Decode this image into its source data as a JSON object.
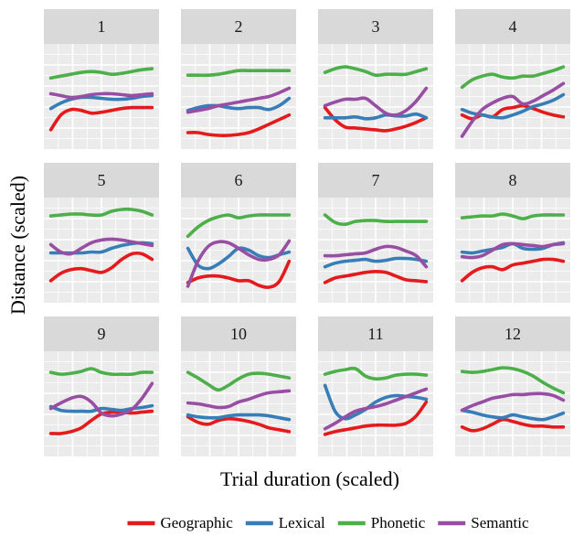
{
  "chart_data": {
    "type": "line",
    "layout": "small-multiples 3x4",
    "xlabel": "Trial duration (scaled)",
    "ylabel": "Distance (scaled)",
    "xlim": [
      0,
      1
    ],
    "ylim": [
      0,
      1
    ],
    "grid": true,
    "tick_labels": "none",
    "legend_position": "bottom",
    "x": [
      0,
      0.1,
      0.2,
      0.3,
      0.4,
      0.5,
      0.6,
      0.7,
      0.8,
      0.9,
      1.0
    ],
    "legend": [
      {
        "name": "Geographic",
        "color": "#e41a1c"
      },
      {
        "name": "Lexical",
        "color": "#377eb8"
      },
      {
        "name": "Phonetic",
        "color": "#4daf4a"
      },
      {
        "name": "Semantic",
        "color": "#984ea3"
      }
    ],
    "panels": [
      {
        "label": "1",
        "series": [
          {
            "name": "Geographic",
            "values": [
              0.14,
              0.3,
              0.36,
              0.35,
              0.32,
              0.33,
              0.35,
              0.37,
              0.38,
              0.38,
              0.38
            ]
          },
          {
            "name": "Lexical",
            "values": [
              0.37,
              0.43,
              0.47,
              0.49,
              0.49,
              0.48,
              0.47,
              0.47,
              0.48,
              0.5,
              0.51
            ]
          },
          {
            "name": "Phonetic",
            "values": [
              0.7,
              0.72,
              0.74,
              0.76,
              0.77,
              0.76,
              0.74,
              0.75,
              0.77,
              0.79,
              0.8
            ]
          },
          {
            "name": "Semantic",
            "values": [
              0.53,
              0.51,
              0.49,
              0.5,
              0.52,
              0.53,
              0.53,
              0.52,
              0.51,
              0.52,
              0.53
            ]
          }
        ]
      },
      {
        "label": "2",
        "series": [
          {
            "name": "Geographic",
            "values": [
              0.11,
              0.11,
              0.09,
              0.08,
              0.08,
              0.09,
              0.11,
              0.15,
              0.2,
              0.25,
              0.3
            ]
          },
          {
            "name": "Lexical",
            "values": [
              0.35,
              0.38,
              0.4,
              0.4,
              0.38,
              0.37,
              0.38,
              0.38,
              0.36,
              0.4,
              0.48
            ]
          },
          {
            "name": "Phonetic",
            "values": [
              0.73,
              0.73,
              0.73,
              0.74,
              0.76,
              0.78,
              0.78,
              0.78,
              0.78,
              0.78,
              0.78
            ]
          },
          {
            "name": "Semantic",
            "values": [
              0.33,
              0.35,
              0.37,
              0.4,
              0.42,
              0.44,
              0.46,
              0.48,
              0.5,
              0.54,
              0.59
            ]
          }
        ]
      },
      {
        "label": "3",
        "series": [
          {
            "name": "Geographic",
            "values": [
              0.38,
              0.25,
              0.17,
              0.16,
              0.15,
              0.14,
              0.13,
              0.15,
              0.18,
              0.22,
              0.27
            ]
          },
          {
            "name": "Lexical",
            "values": [
              0.27,
              0.27,
              0.27,
              0.28,
              0.26,
              0.27,
              0.3,
              0.29,
              0.29,
              0.31,
              0.27
            ]
          },
          {
            "name": "Phonetic",
            "values": [
              0.76,
              0.8,
              0.82,
              0.8,
              0.77,
              0.73,
              0.74,
              0.74,
              0.74,
              0.77,
              0.8
            ]
          },
          {
            "name": "Semantic",
            "values": [
              0.4,
              0.44,
              0.47,
              0.47,
              0.48,
              0.4,
              0.32,
              0.3,
              0.35,
              0.45,
              0.59
            ]
          }
        ]
      },
      {
        "label": "4",
        "series": [
          {
            "name": "Geographic",
            "values": [
              0.3,
              0.26,
              0.3,
              0.28,
              0.36,
              0.38,
              0.4,
              0.37,
              0.33,
              0.3,
              0.28
            ]
          },
          {
            "name": "Lexical",
            "values": [
              0.36,
              0.32,
              0.3,
              0.28,
              0.27,
              0.3,
              0.34,
              0.39,
              0.42,
              0.46,
              0.52
            ]
          },
          {
            "name": "Phonetic",
            "values": [
              0.6,
              0.68,
              0.72,
              0.74,
              0.71,
              0.7,
              0.72,
              0.72,
              0.75,
              0.78,
              0.82
            ]
          },
          {
            "name": "Semantic",
            "values": [
              0.07,
              0.23,
              0.36,
              0.43,
              0.48,
              0.5,
              0.42,
              0.45,
              0.51,
              0.57,
              0.64
            ]
          }
        ]
      },
      {
        "label": "5",
        "series": [
          {
            "name": "Geographic",
            "values": [
              0.17,
              0.25,
              0.29,
              0.3,
              0.28,
              0.26,
              0.31,
              0.4,
              0.46,
              0.46,
              0.4
            ]
          },
          {
            "name": "Lexical",
            "values": [
              0.47,
              0.47,
              0.47,
              0.47,
              0.48,
              0.48,
              0.52,
              0.55,
              0.57,
              0.58,
              0.57
            ]
          },
          {
            "name": "Phonetic",
            "values": [
              0.87,
              0.88,
              0.89,
              0.89,
              0.88,
              0.88,
              0.92,
              0.94,
              0.94,
              0.92,
              0.88
            ]
          },
          {
            "name": "Semantic",
            "values": [
              0.56,
              0.48,
              0.46,
              0.52,
              0.58,
              0.61,
              0.62,
              0.61,
              0.59,
              0.57,
              0.55
            ]
          }
        ]
      },
      {
        "label": "6",
        "series": [
          {
            "name": "Geographic",
            "values": [
              0.15,
              0.2,
              0.22,
              0.22,
              0.2,
              0.17,
              0.17,
              0.12,
              0.1,
              0.16,
              0.38
            ]
          },
          {
            "name": "Lexical",
            "values": [
              0.52,
              0.34,
              0.3,
              0.35,
              0.43,
              0.52,
              0.5,
              0.44,
              0.42,
              0.45,
              0.48
            ]
          },
          {
            "name": "Phonetic",
            "values": [
              0.65,
              0.75,
              0.82,
              0.86,
              0.88,
              0.85,
              0.87,
              0.88,
              0.88,
              0.88,
              0.88
            ]
          },
          {
            "name": "Semantic",
            "values": [
              0.11,
              0.38,
              0.54,
              0.59,
              0.58,
              0.52,
              0.45,
              0.4,
              0.4,
              0.45,
              0.6
            ]
          }
        ]
      },
      {
        "label": "7",
        "series": [
          {
            "name": "Geographic",
            "values": [
              0.15,
              0.2,
              0.22,
              0.24,
              0.26,
              0.27,
              0.26,
              0.22,
              0.18,
              0.17,
              0.16
            ]
          },
          {
            "name": "Lexical",
            "values": [
              0.32,
              0.36,
              0.38,
              0.39,
              0.4,
              0.38,
              0.39,
              0.41,
              0.41,
              0.4,
              0.38
            ]
          },
          {
            "name": "Phonetic",
            "values": [
              0.88,
              0.8,
              0.78,
              0.81,
              0.82,
              0.82,
              0.81,
              0.81,
              0.81,
              0.81,
              0.81
            ]
          },
          {
            "name": "Semantic",
            "values": [
              0.44,
              0.44,
              0.45,
              0.46,
              0.47,
              0.51,
              0.54,
              0.53,
              0.49,
              0.44,
              0.32
            ]
          }
        ]
      },
      {
        "label": "8",
        "series": [
          {
            "name": "Geographic",
            "values": [
              0.17,
              0.26,
              0.31,
              0.32,
              0.29,
              0.34,
              0.36,
              0.38,
              0.4,
              0.4,
              0.38
            ]
          },
          {
            "name": "Lexical",
            "values": [
              0.48,
              0.47,
              0.49,
              0.51,
              0.53,
              0.57,
              0.52,
              0.51,
              0.52,
              0.56,
              0.58
            ]
          },
          {
            "name": "Phonetic",
            "values": [
              0.85,
              0.86,
              0.87,
              0.87,
              0.89,
              0.87,
              0.84,
              0.87,
              0.88,
              0.88,
              0.88
            ]
          },
          {
            "name": "Semantic",
            "values": [
              0.43,
              0.42,
              0.44,
              0.5,
              0.56,
              0.57,
              0.56,
              0.55,
              0.54,
              0.56,
              0.57
            ]
          }
        ]
      },
      {
        "label": "9",
        "series": [
          {
            "name": "Geographic",
            "values": [
              0.18,
              0.18,
              0.2,
              0.24,
              0.32,
              0.39,
              0.41,
              0.41,
              0.4,
              0.41,
              0.42
            ]
          },
          {
            "name": "Lexical",
            "values": [
              0.47,
              0.43,
              0.42,
              0.42,
              0.42,
              0.45,
              0.44,
              0.43,
              0.45,
              0.46,
              0.48
            ]
          },
          {
            "name": "Phonetic",
            "values": [
              0.84,
              0.82,
              0.83,
              0.85,
              0.88,
              0.84,
              0.82,
              0.82,
              0.82,
              0.84,
              0.84
            ]
          },
          {
            "name": "Semantic",
            "values": [
              0.45,
              0.51,
              0.56,
              0.58,
              0.52,
              0.4,
              0.37,
              0.39,
              0.44,
              0.56,
              0.72
            ]
          }
        ]
      },
      {
        "label": "10",
        "series": [
          {
            "name": "Geographic",
            "values": [
              0.36,
              0.3,
              0.28,
              0.32,
              0.34,
              0.33,
              0.31,
              0.28,
              0.24,
              0.22,
              0.2
            ]
          },
          {
            "name": "Lexical",
            "values": [
              0.38,
              0.36,
              0.35,
              0.35,
              0.37,
              0.38,
              0.38,
              0.38,
              0.37,
              0.35,
              0.33
            ]
          },
          {
            "name": "Phonetic",
            "values": [
              0.84,
              0.78,
              0.71,
              0.65,
              0.7,
              0.77,
              0.82,
              0.83,
              0.82,
              0.8,
              0.78
            ]
          },
          {
            "name": "Semantic",
            "values": [
              0.51,
              0.5,
              0.48,
              0.46,
              0.47,
              0.52,
              0.55,
              0.59,
              0.62,
              0.63,
              0.64
            ]
          }
        ]
      },
      {
        "label": "11",
        "series": [
          {
            "name": "Geographic",
            "values": [
              0.17,
              0.2,
              0.22,
              0.24,
              0.26,
              0.27,
              0.27,
              0.27,
              0.29,
              0.37,
              0.52
            ]
          },
          {
            "name": "Lexical",
            "values": [
              0.7,
              0.42,
              0.34,
              0.38,
              0.44,
              0.52,
              0.57,
              0.59,
              0.58,
              0.57,
              0.55
            ]
          },
          {
            "name": "Phonetic",
            "values": [
              0.82,
              0.85,
              0.87,
              0.88,
              0.8,
              0.77,
              0.78,
              0.81,
              0.82,
              0.82,
              0.81
            ]
          },
          {
            "name": "Semantic",
            "values": [
              0.23,
              0.29,
              0.36,
              0.42,
              0.45,
              0.47,
              0.5,
              0.54,
              0.58,
              0.62,
              0.66
            ]
          }
        ]
      },
      {
        "label": "12",
        "series": [
          {
            "name": "Geographic",
            "values": [
              0.25,
              0.21,
              0.23,
              0.28,
              0.33,
              0.31,
              0.28,
              0.26,
              0.26,
              0.25,
              0.25
            ]
          },
          {
            "name": "Lexical",
            "values": [
              0.43,
              0.41,
              0.38,
              0.36,
              0.35,
              0.38,
              0.36,
              0.34,
              0.33,
              0.36,
              0.4
            ]
          },
          {
            "name": "Phonetic",
            "values": [
              0.85,
              0.84,
              0.85,
              0.87,
              0.89,
              0.88,
              0.85,
              0.8,
              0.73,
              0.67,
              0.62
            ]
          },
          {
            "name": "Semantic",
            "values": [
              0.43,
              0.48,
              0.52,
              0.56,
              0.58,
              0.6,
              0.6,
              0.61,
              0.61,
              0.59,
              0.54
            ]
          }
        ]
      }
    ]
  }
}
